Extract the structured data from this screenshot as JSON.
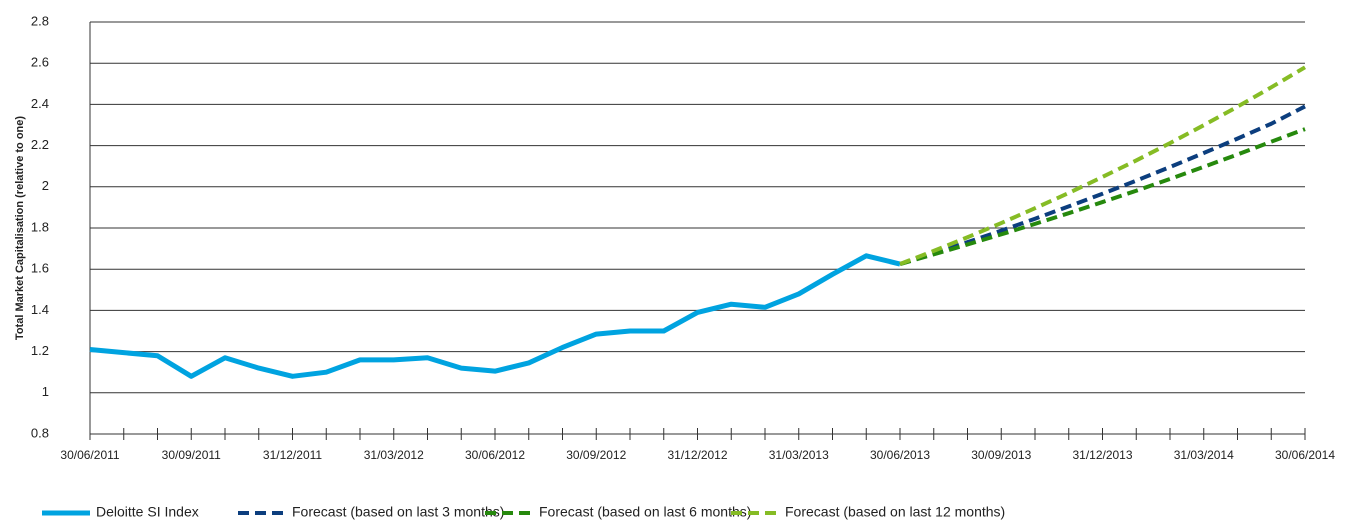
{
  "chart_data": {
    "type": "line",
    "y_label": "Total Market Capitalisation (relative to one)",
    "categories": [
      "30/06/2011",
      null,
      null,
      "30/09/2011",
      null,
      null,
      "31/12/2011",
      null,
      null,
      "31/03/2012",
      null,
      null,
      "30/06/2012",
      null,
      null,
      "30/09/2012",
      null,
      null,
      "31/12/2012",
      null,
      null,
      "31/03/2013",
      null,
      null,
      "30/06/2013",
      null,
      null,
      "30/09/2013",
      null,
      null,
      "31/12/2013",
      null,
      null,
      "31/03/2014",
      null,
      null,
      "30/06/2014"
    ],
    "ylim": [
      0.8,
      2.8
    ],
    "yticks": [
      0.8,
      1,
      1.2,
      1.4,
      1.6,
      1.8,
      2,
      2.2,
      2.4,
      2.6,
      2.8
    ],
    "grid": true,
    "legend": "bottom",
    "series": [
      {
        "name": "Deloitte SI Index",
        "color": "#00a3e0",
        "dashed": false,
        "values": [
          1.21,
          1.195,
          1.18,
          1.08,
          1.17,
          1.12,
          1.08,
          1.1,
          1.16,
          1.16,
          1.17,
          1.12,
          1.105,
          1.145,
          1.22,
          1.285,
          1.3,
          1.3,
          1.39,
          1.43,
          1.415,
          1.48,
          1.575,
          1.665,
          1.625,
          null,
          null,
          null,
          null,
          null,
          null,
          null,
          null,
          null,
          null,
          null,
          null
        ]
      },
      {
        "name": "Forecast (based on last 3 months)",
        "color": "#0c3e7e",
        "dashed": true,
        "values": [
          null,
          null,
          null,
          null,
          null,
          null,
          null,
          null,
          null,
          null,
          null,
          null,
          null,
          null,
          null,
          null,
          null,
          null,
          null,
          null,
          null,
          null,
          null,
          null,
          1.625,
          1.678,
          1.731,
          1.787,
          1.845,
          1.905,
          1.966,
          2.03,
          2.096,
          2.164,
          2.234,
          2.306,
          2.39
        ]
      },
      {
        "name": "Forecast (based on last 6 months)",
        "color": "#26890d",
        "dashed": true,
        "values": [
          null,
          null,
          null,
          null,
          null,
          null,
          null,
          null,
          null,
          null,
          null,
          null,
          null,
          null,
          null,
          null,
          null,
          null,
          null,
          null,
          null,
          null,
          null,
          null,
          1.625,
          1.672,
          1.72,
          1.769,
          1.82,
          1.872,
          1.926,
          1.981,
          2.038,
          2.097,
          2.157,
          2.219,
          2.28
        ]
      },
      {
        "name": "Forecast (based on last 12 months)",
        "color": "#86bc25",
        "dashed": true,
        "values": [
          null,
          null,
          null,
          null,
          null,
          null,
          null,
          null,
          null,
          null,
          null,
          null,
          null,
          null,
          null,
          null,
          null,
          null,
          null,
          null,
          null,
          null,
          null,
          null,
          1.625,
          1.689,
          1.755,
          1.824,
          1.896,
          1.97,
          2.048,
          2.128,
          2.212,
          2.299,
          2.389,
          2.483,
          2.58
        ]
      }
    ]
  }
}
